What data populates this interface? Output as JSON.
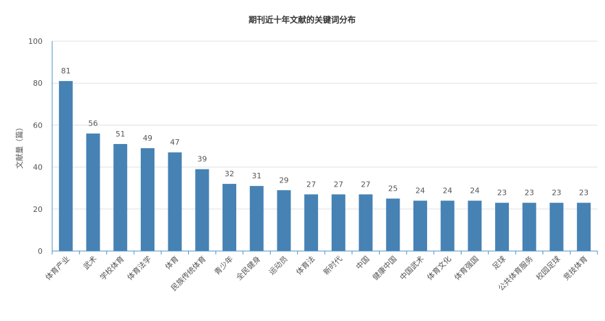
{
  "chart_data": {
    "type": "bar",
    "title": "期刊近十年文献的关键词分布",
    "ylabel": "文献量（篇）",
    "xlabel": "",
    "ylim": [
      0,
      100
    ],
    "yticks": [
      0,
      20,
      40,
      60,
      80,
      100
    ],
    "grid": true,
    "categories": [
      "体育产业",
      "武术",
      "学校体育",
      "体育法学",
      "体育",
      "民族传统体育",
      "青少年",
      "全民健身",
      "运动员",
      "体育法",
      "新时代",
      "中国",
      "健康中国",
      "中国武术",
      "体育文化",
      "体育强国",
      "足球",
      "公共体育服务",
      "校园足球",
      "竞技体育"
    ],
    "values": [
      81,
      56,
      51,
      49,
      47,
      39,
      32,
      31,
      29,
      27,
      27,
      27,
      25,
      24,
      24,
      24,
      23,
      23,
      23,
      23
    ],
    "colors": {
      "bar": "#4682b4",
      "axis": "#4a90c8",
      "grid": "#e0e0e0",
      "text": "#555555",
      "title": "#333333"
    }
  }
}
